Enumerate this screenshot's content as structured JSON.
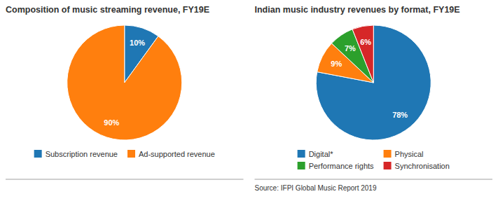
{
  "chart_data": [
    {
      "type": "pie",
      "title": "Composition of music streaming revenue, FY19E",
      "categories": [
        "Subscription revenue",
        "Ad-supported revenue"
      ],
      "values": [
        10,
        90
      ],
      "value_labels": [
        "10%",
        "90%"
      ],
      "data_labels": true,
      "legend": "bottom"
    },
    {
      "type": "pie",
      "title": "Indian music industry revenues by format, FY19E",
      "categories": [
        "Digital*",
        "Physical",
        "Performance rights",
        "Synchronisation"
      ],
      "values": [
        78,
        9,
        7,
        6
      ],
      "value_labels": [
        "78%",
        "9%",
        "7%",
        "6%"
      ],
      "data_labels": true,
      "legend": "bottom",
      "annotations": [
        "Source: IFPI Global Music Report 2019"
      ]
    }
  ]
}
